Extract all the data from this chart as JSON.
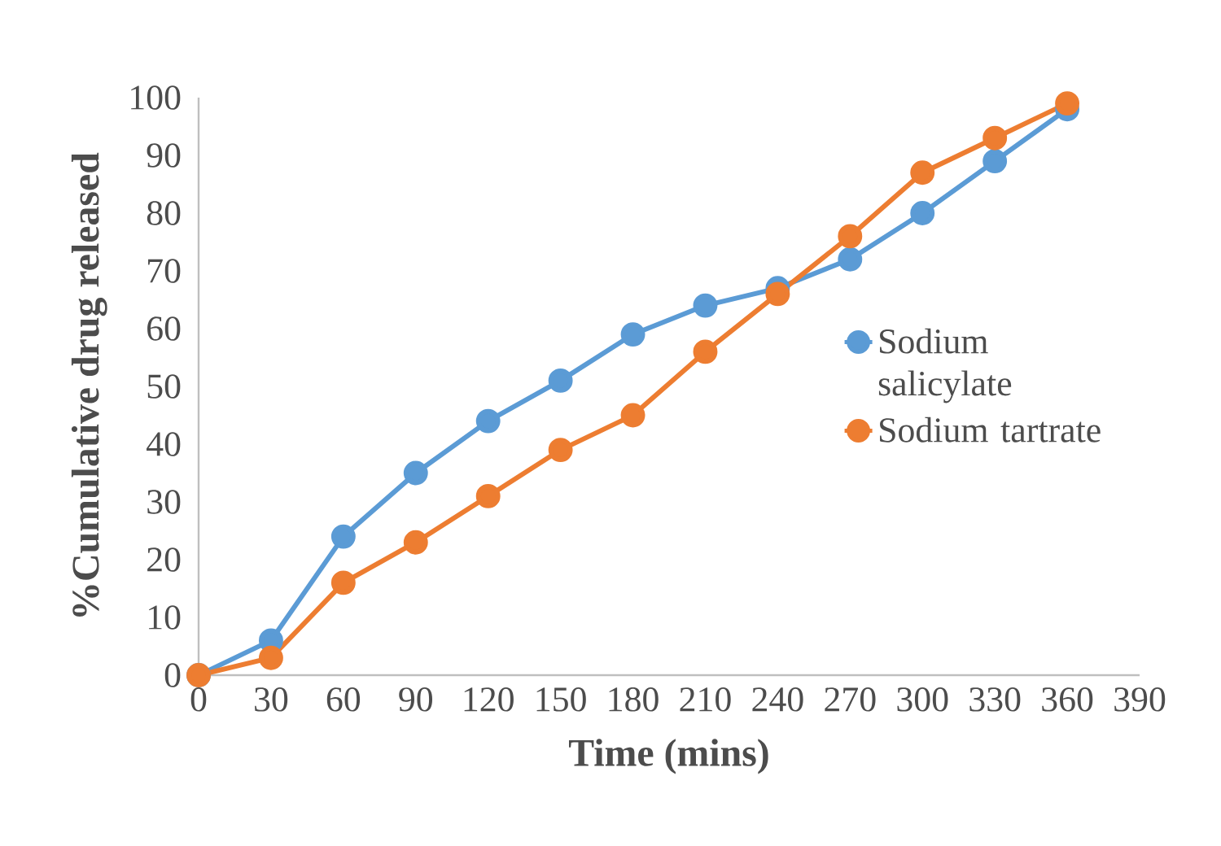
{
  "chart_data": {
    "type": "line",
    "xlabel": "Time (mins)",
    "ylabel": "%Cumulative drug released",
    "x": [
      0,
      30,
      60,
      90,
      120,
      150,
      180,
      210,
      240,
      270,
      300,
      330,
      360
    ],
    "series": [
      {
        "name": "Sodium salicylate",
        "color": "#5b9bd5",
        "values": [
          0,
          6,
          24,
          35,
          44,
          51,
          59,
          64,
          67,
          72,
          80,
          89,
          98
        ]
      },
      {
        "name": "Sodium tartrate",
        "color": "#ed7d31",
        "values": [
          0,
          3,
          16,
          23,
          31,
          39,
          45,
          56,
          66,
          76,
          87,
          93,
          99
        ]
      }
    ],
    "xlim": [
      0,
      390
    ],
    "ylim": [
      0,
      100
    ],
    "xticks": [
      0,
      30,
      60,
      90,
      120,
      150,
      180,
      210,
      240,
      270,
      300,
      330,
      360,
      390
    ],
    "yticks": [
      0,
      10,
      20,
      30,
      40,
      50,
      60,
      70,
      80,
      90,
      100
    ],
    "legend": "right",
    "marker": "circle"
  }
}
